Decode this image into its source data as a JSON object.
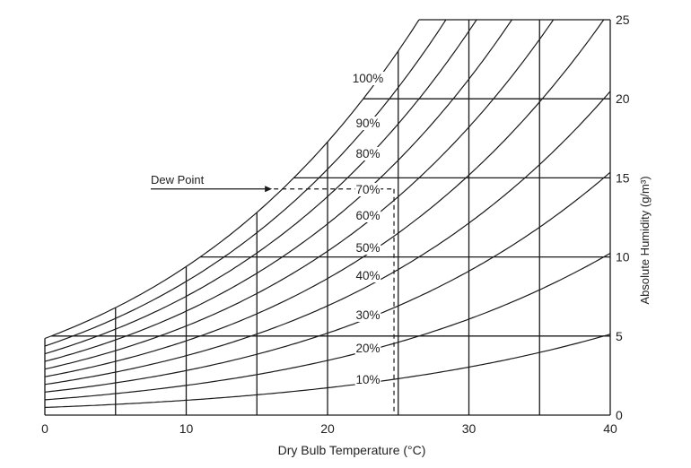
{
  "chart_data": {
    "type": "line",
    "title": "",
    "xlabel": "Dry Bulb Temperature (°C)",
    "ylabel": "Absolute Humidity (g/m³)",
    "xlim": [
      0,
      40
    ],
    "ylim": [
      0,
      25
    ],
    "x_ticks": [
      "0",
      "10",
      "20",
      "30",
      "40"
    ],
    "y_ticks": [
      "0",
      "5",
      "10",
      "15",
      "20",
      "25"
    ],
    "grid": {
      "vertical_at": [
        0,
        5,
        10,
        15,
        20,
        25,
        30,
        35,
        40
      ],
      "horizontal_at": [
        5,
        10,
        15,
        20,
        25
      ]
    },
    "saturation_curve": {
      "x": [
        0,
        5,
        10,
        15,
        20,
        25,
        26
      ],
      "y": [
        4.85,
        6.8,
        9.4,
        12.8,
        17.3,
        23.0,
        24.4
      ]
    },
    "series": [
      {
        "name": "10%",
        "fraction": 0.1
      },
      {
        "name": "20%",
        "fraction": 0.2
      },
      {
        "name": "30%",
        "fraction": 0.3
      },
      {
        "name": "40%",
        "fraction": 0.4
      },
      {
        "name": "50%",
        "fraction": 0.5
      },
      {
        "name": "60%",
        "fraction": 0.6
      },
      {
        "name": "70%",
        "fraction": 0.7
      },
      {
        "name": "80%",
        "fraction": 0.8
      },
      {
        "name": "90%",
        "fraction": 0.9
      },
      {
        "name": "100%",
        "fraction": 1.0
      }
    ],
    "annotations": [
      {
        "text": "Dew Point",
        "type": "arrow",
        "points_to": {
          "x": 16.2,
          "y": 14.3
        }
      },
      {
        "type": "dashed_line",
        "from": {
          "x": 16.2,
          "y": 14.3
        },
        "to": {
          "x": 24.7,
          "y": 14.3
        }
      },
      {
        "type": "dashed_line",
        "from": {
          "x": 24.7,
          "y": 14.3
        },
        "to": {
          "x": 24.7,
          "y": 0
        }
      }
    ]
  },
  "labels": {
    "dew_point": "Dew Point",
    "xlabel": "Dry Bulb Temperature (°C)",
    "ylabel": "Absolute Humidity (g/m³)"
  }
}
